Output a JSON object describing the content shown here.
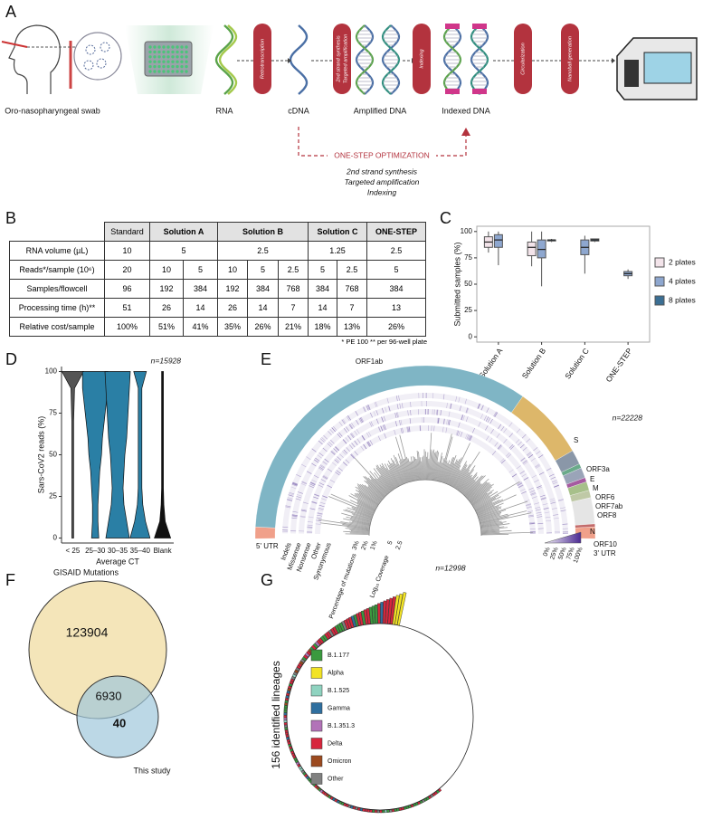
{
  "panel_labels": [
    "A",
    "B",
    "C",
    "D",
    "E",
    "F",
    "G"
  ],
  "workflow": {
    "sample_label": "Oro-nasopharyngeal swab",
    "stages": [
      "RNA",
      "cDNA",
      "Amplified DNA",
      "Indexed DNA"
    ],
    "steps": [
      [
        "Retrotranscription"
      ],
      [
        "2nd strand synthesis",
        "Targeted amplification"
      ],
      [
        "Indexing"
      ],
      [
        "Circularization"
      ],
      [
        "Nanoball generation"
      ]
    ],
    "optimization": {
      "title": "ONE-STEP OPTIMIZATION",
      "lines": [
        "2nd strand synthesis",
        "Targeted amplification",
        "Indexing"
      ]
    }
  },
  "table": {
    "header": [
      "Standard",
      "Solution A",
      "Solution B",
      "Solution C",
      "ONE-STEP"
    ],
    "rows": [
      [
        "RNA volume (µL)",
        "10",
        "5",
        "2.5",
        "1.25",
        "2.5"
      ],
      [
        "Reads*/sample (10⁶)",
        "20",
        "10",
        "5",
        "10",
        "5",
        "2.5",
        "5",
        "2.5",
        "5"
      ],
      [
        "Samples/flowcell",
        "96",
        "192",
        "384",
        "192",
        "384",
        "768",
        "384",
        "768",
        "384"
      ],
      [
        "Processing time (h)**",
        "51",
        "26",
        "14",
        "26",
        "14",
        "7",
        "14",
        "7",
        "13"
      ],
      [
        "Relative cost/sample",
        "100%",
        "51%",
        "41%",
        "35%",
        "26%",
        "21%",
        "18%",
        "13%",
        "26%"
      ]
    ],
    "footnote": "* PE 100 ** per 96-well plate"
  },
  "panel_c": {
    "type": "box",
    "y_label": "Submitted samples (%)",
    "categories": [
      "Solution A",
      "Solution B",
      "Solution C",
      "ONE-STEP"
    ],
    "ylim": [
      -5,
      105
    ],
    "yticks": [
      0,
      25,
      50,
      75,
      100
    ],
    "series": [
      {
        "name": "2 plates",
        "color": "#f3e4ea",
        "boxes": [
          {
            "min": 80,
            "q1": 85,
            "median": 90,
            "q3": 95,
            "max": 100
          },
          {
            "min": 67,
            "q1": 77,
            "median": 85,
            "q3": 90,
            "max": 100
          },
          null,
          null
        ]
      },
      {
        "name": "4 plates",
        "color": "#8ea7cf",
        "boxes": [
          {
            "min": 68,
            "q1": 85,
            "median": 92,
            "q3": 97,
            "max": 100
          },
          {
            "min": 48,
            "q1": 75,
            "median": 83,
            "q3": 92,
            "max": 100
          },
          {
            "min": 60,
            "q1": 78,
            "median": 85,
            "q3": 92,
            "max": 96
          },
          {
            "min": 55,
            "q1": 58,
            "median": 60,
            "q3": 62,
            "max": 64
          }
        ]
      },
      {
        "name": "8 plates",
        "color": "#3b6f94",
        "boxes": [
          null,
          {
            "min": 90,
            "q1": 91,
            "median": 92,
            "q3": 92,
            "max": 93
          },
          {
            "min": 90,
            "q1": 91,
            "median": 92,
            "q3": 93,
            "max": 93
          },
          null
        ]
      }
    ]
  },
  "panel_d": {
    "type": "violin",
    "n_label": "n=15928",
    "y_label": "Sars-CoV2 reads (%)",
    "x_label": "Average CT",
    "categories": [
      "< 25",
      "25–30",
      "30–35",
      "35–40",
      "Blank"
    ],
    "ylim": [
      -3,
      103
    ],
    "yticks": [
      0,
      25,
      50,
      75,
      100
    ]
  },
  "panel_e": {
    "n_label": "n=22228",
    "genes": [
      "5' UTR",
      "ORF1ab",
      "S",
      "ORF3a",
      "E",
      "M",
      "ORF6",
      "ORF7ab",
      "ORF8",
      "N",
      "ORF10",
      "3' UTR"
    ],
    "tracks": [
      "Indels",
      "Missense",
      "Nonsense",
      "Other",
      "Synonymous"
    ],
    "mutation_axis": {
      "label": "Percentage of mutations",
      "ticks": [
        "3%",
        "2%",
        "1%"
      ]
    },
    "coverage_axis": {
      "label": "Log₁₀ Coverage",
      "ticks": [
        "5",
        "2.5"
      ]
    },
    "color_scale": [
      "0%",
      "25%",
      "50%",
      "75%",
      "100%"
    ]
  },
  "panel_f": {
    "sets": [
      "GISAID Mutations",
      "This study"
    ],
    "only_gisaid": 123904,
    "overlap": 6930,
    "only_study": 40
  },
  "panel_g": {
    "n_label": "n=12998",
    "axis_label": "156 identified lineages",
    "legend": [
      {
        "name": "B.1.177",
        "color": "#3a9a3f"
      },
      {
        "name": "Alpha",
        "color": "#f2e325"
      },
      {
        "name": "B.1.525",
        "color": "#8fd3c0"
      },
      {
        "name": "Gamma",
        "color": "#2f6f9f"
      },
      {
        "name": "B.1.351.3",
        "color": "#b273b8"
      },
      {
        "name": "Delta",
        "color": "#d7263d"
      },
      {
        "name": "Omicron",
        "color": "#9c4a1f"
      },
      {
        "name": "Other",
        "color": "#808080"
      }
    ]
  }
}
